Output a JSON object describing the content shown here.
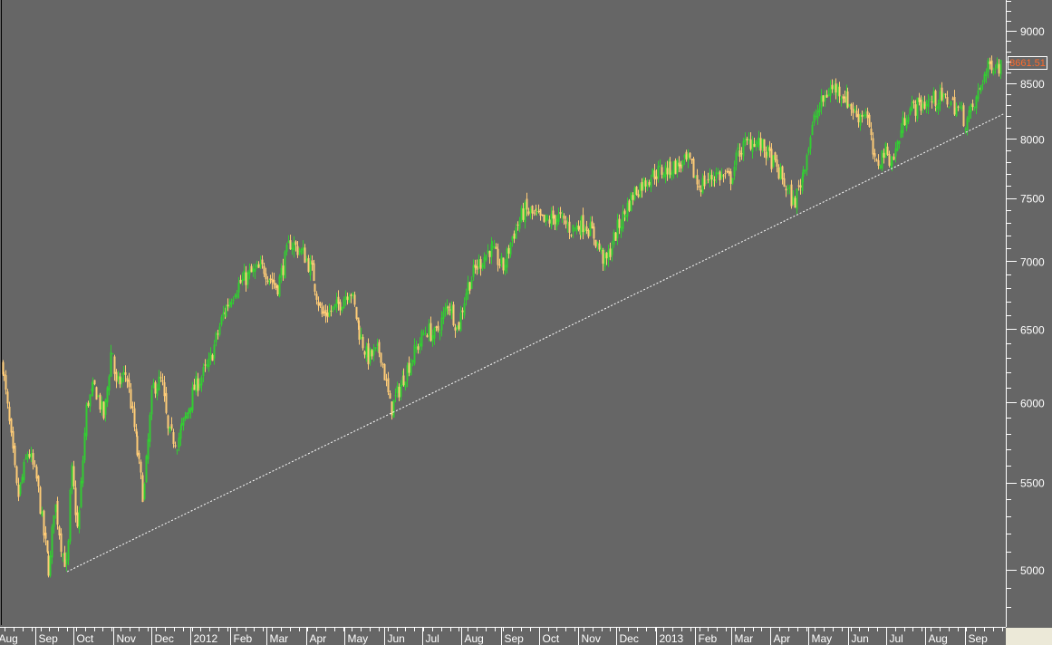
{
  "chart_data": {
    "type": "candlestick",
    "title": "",
    "xlabel": "",
    "ylabel": "",
    "y_scale": "log",
    "ylim": [
      4750,
      9300
    ],
    "y_ticks": [
      5000,
      5500,
      6000,
      6500,
      7000,
      7500,
      8000,
      8500,
      9000
    ],
    "x_tick_labels": [
      "Aug",
      "Sep",
      "Oct",
      "Nov",
      "Dec",
      "2012",
      "Feb",
      "Mar",
      "Apr",
      "May",
      "Jun",
      "Jul",
      "Aug",
      "Sep",
      "Oct",
      "Nov",
      "Dec",
      "2013",
      "Feb",
      "Mar",
      "Apr",
      "May",
      "Jun",
      "Jul",
      "Aug",
      "Sep"
    ],
    "x_tick_dates": [
      "2011-08-01",
      "2011-09-01",
      "2011-10-01",
      "2011-11-01",
      "2011-12-01",
      "2012-01-01",
      "2012-02-01",
      "2012-03-01",
      "2012-04-01",
      "2012-05-01",
      "2012-06-01",
      "2012-07-01",
      "2012-08-01",
      "2012-09-01",
      "2012-10-01",
      "2012-11-01",
      "2012-12-01",
      "2013-01-01",
      "2013-02-01",
      "2013-03-01",
      "2013-04-01",
      "2013-05-01",
      "2013-06-01",
      "2013-07-01",
      "2013-08-01",
      "2013-09-01"
    ],
    "grid": false,
    "last_price": "8661.51",
    "colors": {
      "background": "#666666",
      "up": "#33cc33",
      "down": "#ffcc77",
      "axis": "#ffffff",
      "last_price": "#ff6a2a",
      "trendline": "#ffffff"
    },
    "closes": [
      [
        "2011-08-06",
        6250
      ],
      [
        "2011-08-11",
        5900
      ],
      [
        "2011-08-18",
        5400
      ],
      [
        "2011-08-26",
        5700
      ],
      [
        "2011-09-02",
        5500
      ],
      [
        "2011-09-07",
        5200
      ],
      [
        "2011-09-12",
        4980
      ],
      [
        "2011-09-16",
        5400
      ],
      [
        "2011-09-22",
        5100
      ],
      [
        "2011-09-26",
        5000
      ],
      [
        "2011-09-29",
        5600
      ],
      [
        "2011-10-04",
        5200
      ],
      [
        "2011-10-11",
        6000
      ],
      [
        "2011-10-18",
        6100
      ],
      [
        "2011-10-25",
        5900
      ],
      [
        "2011-10-31",
        6400
      ],
      [
        "2011-11-03",
        6100
      ],
      [
        "2011-11-11",
        6200
      ],
      [
        "2011-11-18",
        5800
      ],
      [
        "2011-11-25",
        5400
      ],
      [
        "2011-12-02",
        6100
      ],
      [
        "2011-12-09",
        6150
      ],
      [
        "2011-12-14",
        5800
      ],
      [
        "2011-12-21",
        5750
      ],
      [
        "2011-12-28",
        5900
      ],
      [
        "2012-01-04",
        6100
      ],
      [
        "2012-01-15",
        6250
      ],
      [
        "2012-01-26",
        6600
      ],
      [
        "2012-02-05",
        6800
      ],
      [
        "2012-02-16",
        6900
      ],
      [
        "2012-02-27",
        6950
      ],
      [
        "2012-03-09",
        6800
      ],
      [
        "2012-03-19",
        7150
      ],
      [
        "2012-03-30",
        7050
      ],
      [
        "2012-04-06",
        6900
      ],
      [
        "2012-04-13",
        6600
      ],
      [
        "2012-04-24",
        6650
      ],
      [
        "2012-05-05",
        6800
      ],
      [
        "2012-05-12",
        6500
      ],
      [
        "2012-05-19",
        6300
      ],
      [
        "2012-05-29",
        6350
      ],
      [
        "2012-06-06",
        5950
      ],
      [
        "2012-06-13",
        6100
      ],
      [
        "2012-06-23",
        6300
      ],
      [
        "2012-07-04",
        6500
      ],
      [
        "2012-07-11",
        6450
      ],
      [
        "2012-07-22",
        6700
      ],
      [
        "2012-07-29",
        6500
      ],
      [
        "2012-08-05",
        6800
      ],
      [
        "2012-08-12",
        6950
      ],
      [
        "2012-08-23",
        7100
      ],
      [
        "2012-09-03",
        6950
      ],
      [
        "2012-09-10",
        7200
      ],
      [
        "2012-09-19",
        7400
      ],
      [
        "2012-09-28",
        7350
      ],
      [
        "2012-10-05",
        7300
      ],
      [
        "2012-10-15",
        7350
      ],
      [
        "2012-10-26",
        7250
      ],
      [
        "2012-11-06",
        7300
      ],
      [
        "2012-11-13",
        7200
      ],
      [
        "2012-11-22",
        6980
      ],
      [
        "2012-12-01",
        7250
      ],
      [
        "2012-12-15",
        7550
      ],
      [
        "2012-12-29",
        7700
      ],
      [
        "2013-01-12",
        7750
      ],
      [
        "2013-01-27",
        7800
      ],
      [
        "2013-02-03",
        7600
      ],
      [
        "2013-02-17",
        7700
      ],
      [
        "2013-02-28",
        7650
      ],
      [
        "2013-03-07",
        7900
      ],
      [
        "2013-03-18",
        8000
      ],
      [
        "2013-03-28",
        7900
      ],
      [
        "2013-04-08",
        7700
      ],
      [
        "2013-04-19",
        7450
      ],
      [
        "2013-04-26",
        7700
      ],
      [
        "2013-05-06",
        8200
      ],
      [
        "2013-05-17",
        8450
      ],
      [
        "2013-05-24",
        8450
      ],
      [
        "2013-05-31",
        8350
      ],
      [
        "2013-06-08",
        8200
      ],
      [
        "2013-06-15",
        8250
      ],
      [
        "2013-06-22",
        7750
      ],
      [
        "2013-06-29",
        7900
      ],
      [
        "2013-07-06",
        7800
      ],
      [
        "2013-07-17",
        8250
      ],
      [
        "2013-07-27",
        8300
      ],
      [
        "2013-08-07",
        8350
      ],
      [
        "2013-08-18",
        8350
      ],
      [
        "2013-08-28",
        8250
      ],
      [
        "2013-09-01",
        8150
      ],
      [
        "2013-09-08",
        8300
      ],
      [
        "2013-09-15",
        8550
      ],
      [
        "2013-09-22",
        8700
      ],
      [
        "2013-09-29",
        8661.51
      ]
    ],
    "trendline": {
      "start": [
        "2011-09-26",
        4990
      ],
      "end": [
        "2013-10-02",
        8225
      ],
      "style": "dotted"
    }
  }
}
